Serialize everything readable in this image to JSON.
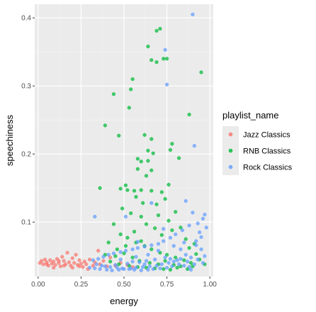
{
  "chart_data": {
    "type": "scatter",
    "xlabel": "energy",
    "ylabel": "speechiness",
    "xlim": [
      -0.02,
      1.02
    ],
    "ylim": [
      0.02,
      0.42
    ],
    "x_ticks": [
      0.0,
      0.25,
      0.5,
      0.75,
      1.0
    ],
    "x_tick_labels": [
      "0.00",
      "0.25",
      "0.50",
      "0.75",
      "1.00"
    ],
    "y_ticks": [
      0.1,
      0.2,
      0.3,
      0.4
    ],
    "y_tick_labels": [
      "0.1",
      "0.2",
      "0.3",
      "0.4"
    ],
    "grid": true,
    "legend": {
      "title": "playlist_name",
      "placement": "right"
    },
    "series": [
      {
        "name": "Jazz Classics",
        "color": "#F8766D",
        "points": [
          [
            0.01,
            0.04
          ],
          [
            0.02,
            0.043
          ],
          [
            0.03,
            0.038
          ],
          [
            0.04,
            0.045
          ],
          [
            0.05,
            0.041
          ],
          [
            0.06,
            0.036
          ],
          [
            0.07,
            0.044
          ],
          [
            0.08,
            0.039
          ],
          [
            0.09,
            0.042
          ],
          [
            0.1,
            0.037
          ],
          [
            0.11,
            0.046
          ],
          [
            0.12,
            0.04
          ],
          [
            0.13,
            0.035
          ],
          [
            0.14,
            0.049
          ],
          [
            0.15,
            0.043
          ],
          [
            0.16,
            0.038
          ],
          [
            0.17,
            0.055
          ],
          [
            0.18,
            0.041
          ],
          [
            0.19,
            0.036
          ],
          [
            0.2,
            0.047
          ],
          [
            0.21,
            0.04
          ],
          [
            0.22,
            0.052
          ],
          [
            0.23,
            0.037
          ],
          [
            0.24,
            0.044
          ],
          [
            0.25,
            0.039
          ],
          [
            0.26,
            0.034
          ],
          [
            0.27,
            0.042
          ],
          [
            0.28,
            0.038
          ],
          [
            0.3,
            0.045
          ],
          [
            0.32,
            0.036
          ],
          [
            0.33,
            0.041
          ],
          [
            0.35,
            0.058
          ],
          [
            0.36,
            0.038
          ],
          [
            0.38,
            0.043
          ],
          [
            0.4,
            0.035
          ],
          [
            0.42,
            0.048
          ],
          [
            0.45,
            0.036
          ],
          [
            0.48,
            0.04
          ],
          [
            0.52,
            0.037
          ],
          [
            0.55,
            0.034
          ],
          [
            0.05,
            0.038
          ],
          [
            0.09,
            0.033
          ],
          [
            0.15,
            0.036
          ],
          [
            0.2,
            0.033
          ],
          [
            0.24,
            0.035
          ],
          [
            0.29,
            0.031
          ],
          [
            0.12,
            0.043
          ]
        ]
      },
      {
        "name": "RNB Classics",
        "color": "#00BA38",
        "points": [
          [
            0.71,
            0.384
          ],
          [
            0.69,
            0.381
          ],
          [
            0.95,
            0.32
          ],
          [
            0.64,
            0.358
          ],
          [
            0.66,
            0.338
          ],
          [
            0.73,
            0.34
          ],
          [
            0.75,
            0.34
          ],
          [
            0.55,
            0.31
          ],
          [
            0.44,
            0.288
          ],
          [
            0.54,
            0.295
          ],
          [
            0.53,
            0.268
          ],
          [
            0.69,
            0.335
          ],
          [
            0.88,
            0.258
          ],
          [
            0.39,
            0.242
          ],
          [
            0.47,
            0.227
          ],
          [
            0.62,
            0.228
          ],
          [
            0.66,
            0.222
          ],
          [
            0.64,
            0.205
          ],
          [
            0.67,
            0.201
          ],
          [
            0.78,
            0.215
          ],
          [
            0.77,
            0.206
          ],
          [
            0.64,
            0.19
          ],
          [
            0.6,
            0.189
          ],
          [
            0.82,
            0.194
          ],
          [
            0.58,
            0.178
          ],
          [
            0.63,
            0.168
          ],
          [
            0.56,
            0.146
          ],
          [
            0.6,
            0.147
          ],
          [
            0.36,
            0.15
          ],
          [
            0.48,
            0.149
          ],
          [
            0.51,
            0.154
          ],
          [
            0.52,
            0.147
          ],
          [
            0.66,
            0.146
          ],
          [
            0.76,
            0.155
          ],
          [
            0.72,
            0.144
          ],
          [
            0.74,
            0.134
          ],
          [
            0.57,
            0.137
          ],
          [
            0.61,
            0.128
          ],
          [
            0.69,
            0.126
          ],
          [
            0.8,
            0.115
          ],
          [
            0.49,
            0.12
          ],
          [
            0.54,
            0.113
          ],
          [
            0.6,
            0.108
          ],
          [
            0.63,
            0.097
          ],
          [
            0.68,
            0.091
          ],
          [
            0.72,
            0.081
          ],
          [
            0.78,
            0.088
          ],
          [
            0.83,
            0.092
          ],
          [
            0.86,
            0.075
          ],
          [
            0.44,
            0.097
          ],
          [
            0.48,
            0.082
          ],
          [
            0.52,
            0.077
          ],
          [
            0.57,
            0.07
          ],
          [
            0.62,
            0.065
          ],
          [
            0.66,
            0.06
          ],
          [
            0.71,
            0.055
          ],
          [
            0.75,
            0.052
          ],
          [
            0.8,
            0.048
          ],
          [
            0.85,
            0.044
          ],
          [
            0.89,
            0.04
          ],
          [
            0.92,
            0.053
          ],
          [
            0.46,
            0.06
          ],
          [
            0.5,
            0.054
          ],
          [
            0.55,
            0.048
          ],
          [
            0.59,
            0.043
          ],
          [
            0.65,
            0.04
          ],
          [
            0.7,
            0.038
          ],
          [
            0.74,
            0.043
          ],
          [
            0.79,
            0.037
          ],
          [
            0.83,
            0.035
          ],
          [
            0.42,
            0.042
          ],
          [
            0.47,
            0.038
          ],
          [
            0.53,
            0.036
          ],
          [
            0.58,
            0.034
          ],
          [
            0.63,
            0.033
          ],
          [
            0.68,
            0.032
          ],
          [
            0.73,
            0.031
          ],
          [
            0.77,
            0.03
          ],
          [
            0.81,
            0.033
          ],
          [
            0.87,
            0.031
          ],
          [
            0.9,
            0.035
          ],
          [
            0.94,
            0.045
          ],
          [
            0.51,
            0.065
          ],
          [
            0.56,
            0.086
          ],
          [
            0.6,
            0.072
          ],
          [
            0.41,
            0.07
          ],
          [
            0.39,
            0.052
          ],
          [
            0.45,
            0.05
          ],
          [
            0.7,
            0.11
          ],
          [
            0.76,
            0.102
          ],
          [
            0.88,
            0.062
          ],
          [
            0.91,
            0.068
          ],
          [
            0.97,
            0.038
          ],
          [
            0.58,
            0.193
          ],
          [
            0.66,
            0.176
          ]
        ]
      },
      {
        "name": "Rock Classics",
        "color": "#619CFF",
        "points": [
          [
            0.9,
            0.405
          ],
          [
            0.74,
            0.353
          ],
          [
            0.75,
            0.302
          ],
          [
            0.91,
            0.212
          ],
          [
            0.33,
            0.108
          ],
          [
            0.51,
            0.108
          ],
          [
            0.97,
            0.111
          ],
          [
            0.96,
            0.105
          ],
          [
            0.93,
            0.098
          ],
          [
            0.9,
            0.114
          ],
          [
            0.86,
            0.131
          ],
          [
            0.88,
            0.095
          ],
          [
            0.84,
            0.088
          ],
          [
            0.8,
            0.082
          ],
          [
            0.77,
            0.077
          ],
          [
            0.73,
            0.072
          ],
          [
            0.7,
            0.068
          ],
          [
            0.66,
            0.066
          ],
          [
            0.62,
            0.064
          ],
          [
            0.58,
            0.062
          ],
          [
            0.55,
            0.06
          ],
          [
            0.51,
            0.058
          ],
          [
            0.48,
            0.056
          ],
          [
            0.44,
            0.054
          ],
          [
            0.41,
            0.052
          ],
          [
            0.38,
            0.049
          ],
          [
            0.35,
            0.046
          ],
          [
            0.32,
            0.044
          ],
          [
            0.94,
            0.085
          ],
          [
            0.92,
            0.072
          ],
          [
            0.95,
            0.06
          ],
          [
            0.97,
            0.05
          ],
          [
            0.93,
            0.045
          ],
          [
            0.89,
            0.048
          ],
          [
            0.86,
            0.052
          ],
          [
            0.83,
            0.046
          ],
          [
            0.79,
            0.042
          ],
          [
            0.76,
            0.04
          ],
          [
            0.72,
            0.038
          ],
          [
            0.69,
            0.036
          ],
          [
            0.65,
            0.035
          ],
          [
            0.61,
            0.034
          ],
          [
            0.57,
            0.033
          ],
          [
            0.54,
            0.032
          ],
          [
            0.5,
            0.031
          ],
          [
            0.47,
            0.03
          ],
          [
            0.43,
            0.029
          ],
          [
            0.4,
            0.03
          ],
          [
            0.36,
            0.031
          ],
          [
            0.33,
            0.032
          ],
          [
            0.3,
            0.033
          ],
          [
            0.88,
            0.034
          ],
          [
            0.85,
            0.036
          ],
          [
            0.82,
            0.038
          ],
          [
            0.78,
            0.035
          ],
          [
            0.75,
            0.033
          ],
          [
            0.71,
            0.032
          ],
          [
            0.67,
            0.031
          ],
          [
            0.64,
            0.03
          ],
          [
            0.6,
            0.029
          ],
          [
            0.56,
            0.03
          ],
          [
            0.53,
            0.031
          ],
          [
            0.49,
            0.032
          ],
          [
            0.46,
            0.033
          ],
          [
            0.42,
            0.034
          ],
          [
            0.39,
            0.035
          ],
          [
            0.96,
            0.04
          ],
          [
            0.91,
            0.038
          ],
          [
            0.87,
            0.042
          ],
          [
            0.81,
            0.044
          ],
          [
            0.77,
            0.046
          ],
          [
            0.74,
            0.048
          ],
          [
            0.68,
            0.045
          ],
          [
            0.63,
            0.043
          ],
          [
            0.59,
            0.041
          ],
          [
            0.52,
            0.039
          ],
          [
            0.45,
            0.037
          ],
          [
            0.37,
            0.036
          ],
          [
            0.34,
            0.038
          ],
          [
            0.92,
            0.066
          ],
          [
            0.95,
            0.078
          ],
          [
            0.98,
            0.092
          ],
          [
            0.85,
            0.07
          ],
          [
            0.79,
            0.065
          ],
          [
            0.7,
            0.058
          ],
          [
            0.64,
            0.052
          ],
          [
            0.57,
            0.049
          ],
          [
            0.66,
            0.128
          ],
          [
            0.73,
            0.09
          ],
          [
            0.89,
            0.03
          ],
          [
            0.62,
            0.038
          ],
          [
            0.55,
            0.042
          ],
          [
            0.48,
            0.045
          ],
          [
            0.58,
            0.071
          ],
          [
            0.83,
            0.06
          ]
        ]
      }
    ]
  }
}
